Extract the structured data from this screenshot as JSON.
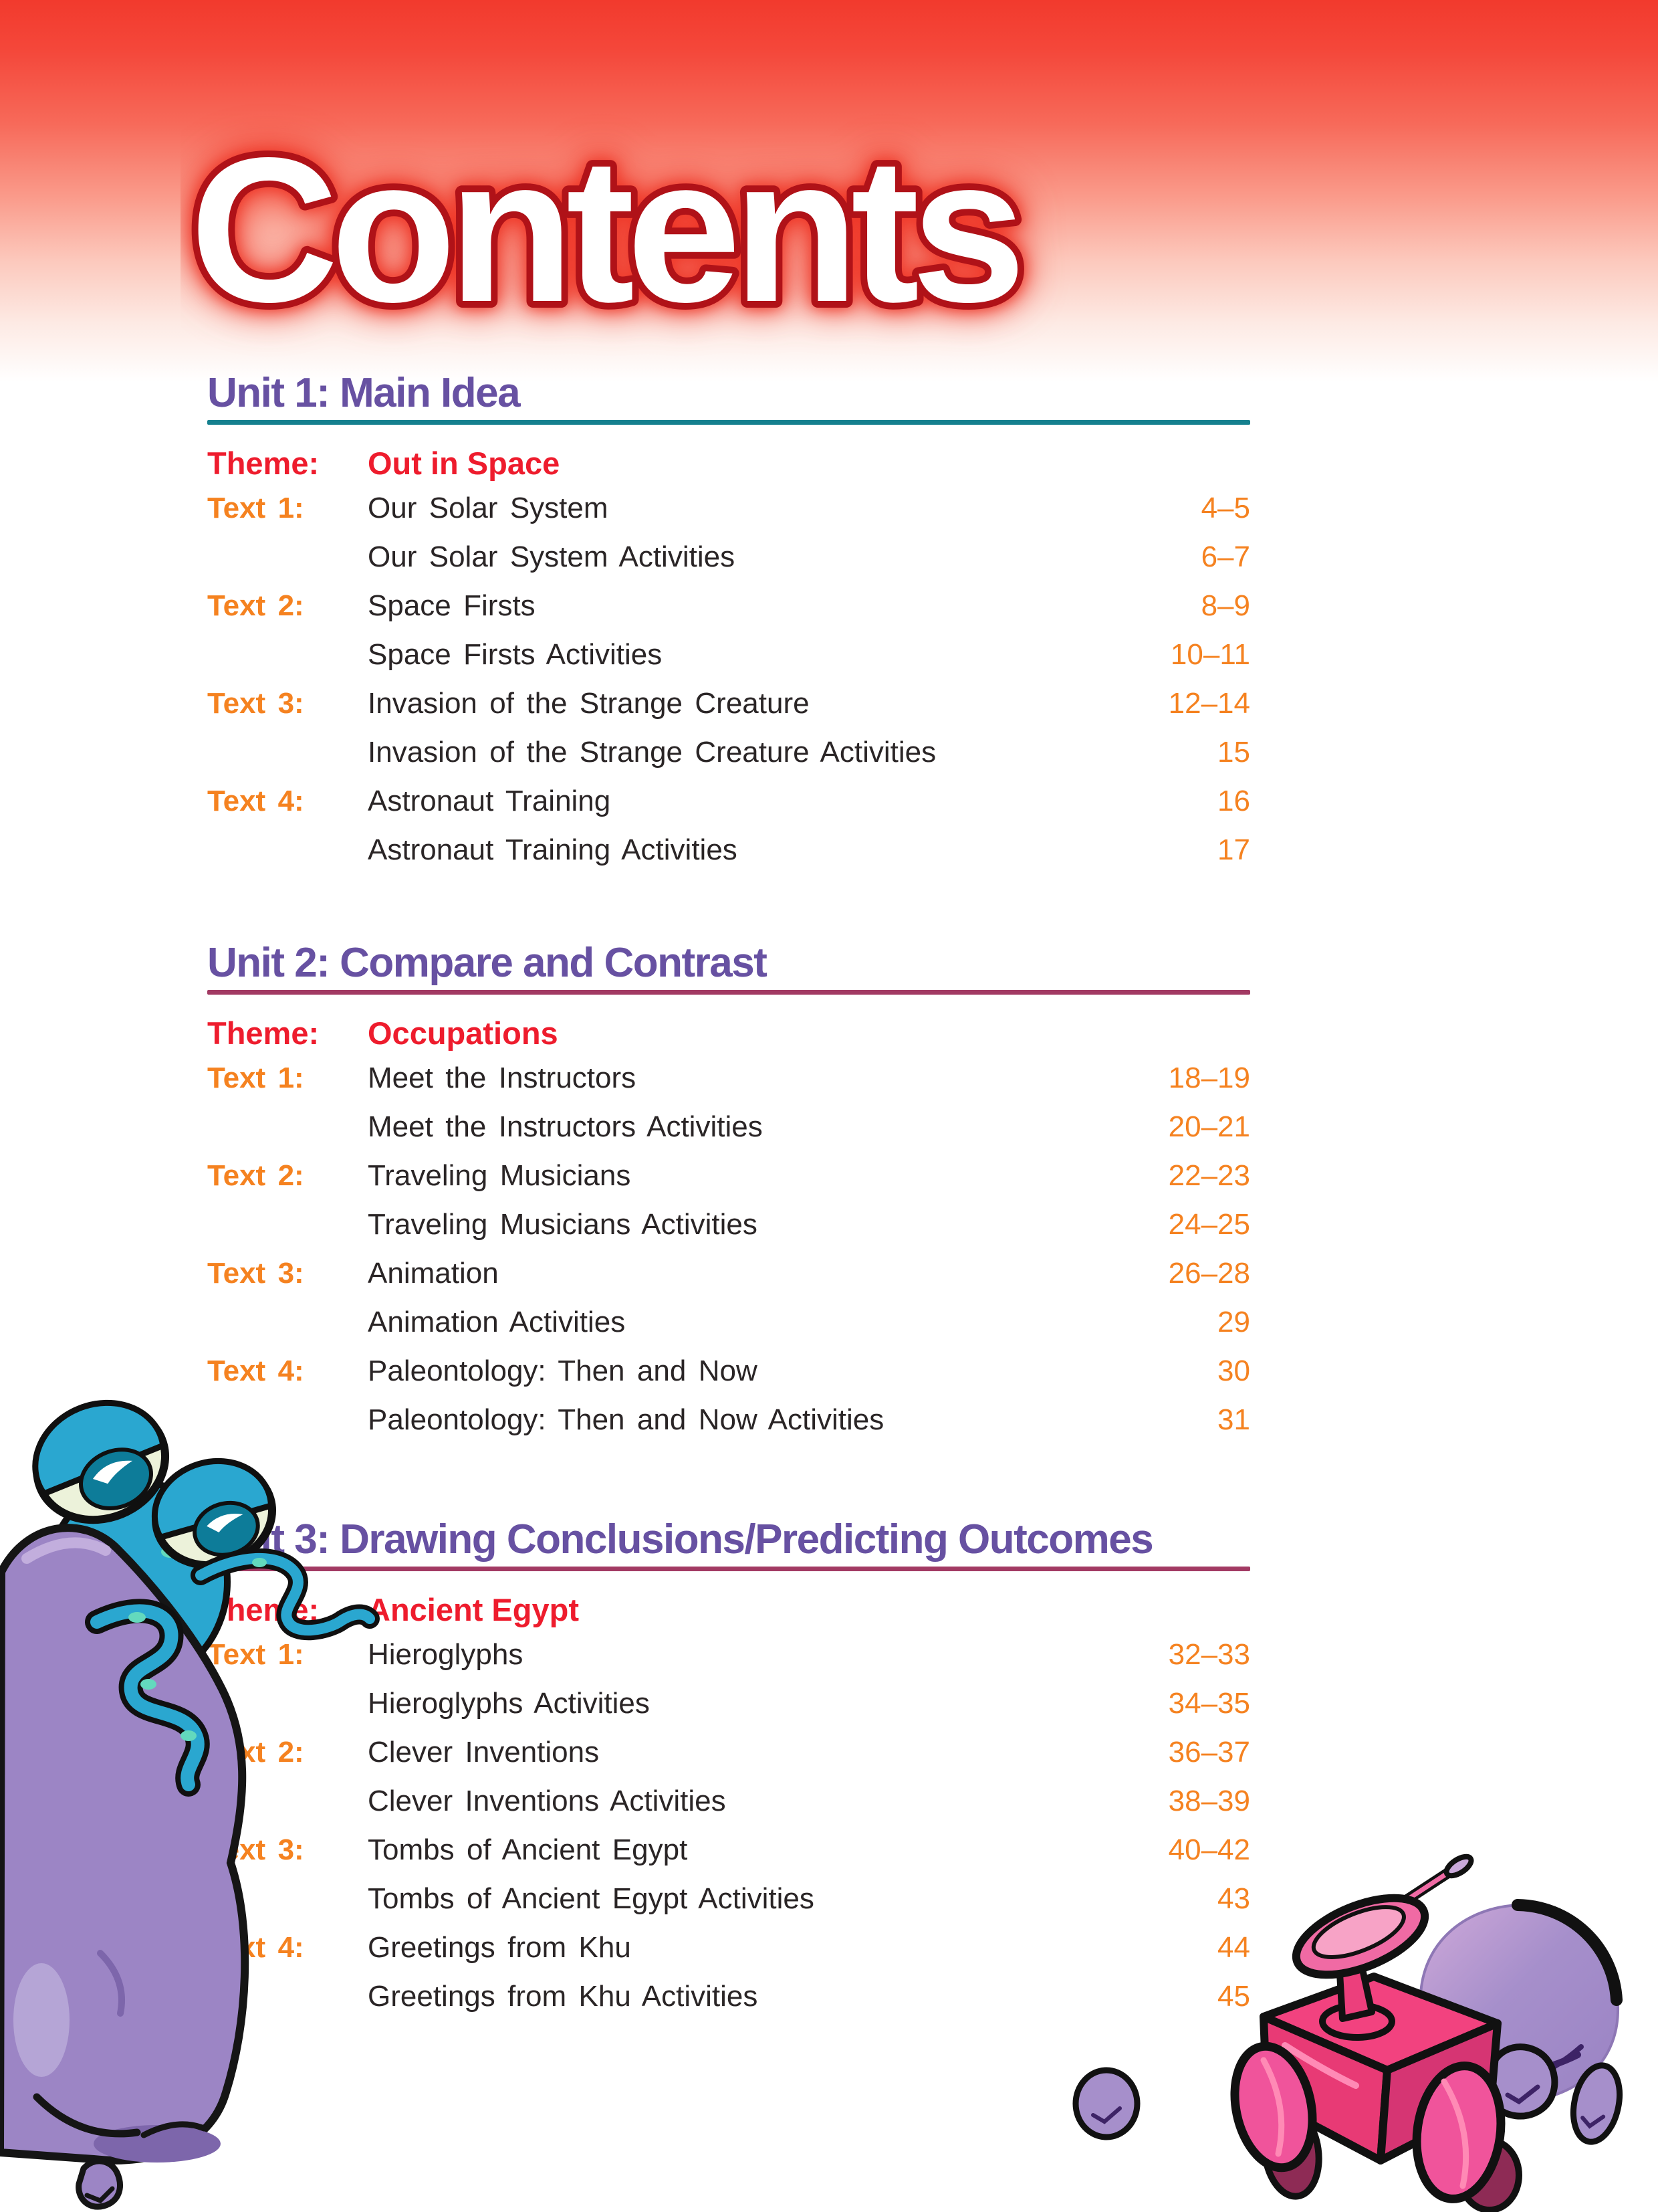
{
  "header": {
    "title": "Contents"
  },
  "colors": {
    "banner_red": "#f23a2d",
    "title_outline_red": "#b01218",
    "unit_heading_purple": "#6751a2",
    "theme_red": "#ee1c2d",
    "label_orange": "#f58220",
    "body_text": "#2a2526",
    "rule_teal": "#15808e",
    "rule_maroon": "#a23a63"
  },
  "units": [
    {
      "heading": "Unit 1: Main Idea",
      "rule_color": "#15808e",
      "theme_label": "Theme:",
      "theme": "Out in Space",
      "rows": [
        {
          "label": "Text 1:",
          "title": "Our Solar System",
          "pages": "4–5"
        },
        {
          "label": "",
          "title": "Our Solar System Activities",
          "pages": "6–7"
        },
        {
          "label": "Text 2:",
          "title": "Space Firsts",
          "pages": "8–9"
        },
        {
          "label": "",
          "title": "Space Firsts Activities",
          "pages": "10–11"
        },
        {
          "label": "Text 3:",
          "title": "Invasion of the Strange Creature",
          "pages": "12–14"
        },
        {
          "label": "",
          "title": "Invasion of the Strange Creature Activities",
          "pages": "15"
        },
        {
          "label": "Text 4:",
          "title": "Astronaut Training",
          "pages": "16"
        },
        {
          "label": "",
          "title": "Astronaut Training Activities",
          "pages": "17"
        }
      ]
    },
    {
      "heading": "Unit 2: Compare and Contrast",
      "rule_color": "#a23a63",
      "theme_label": "Theme:",
      "theme": "Occupations",
      "rows": [
        {
          "label": "Text 1:",
          "title": "Meet the Instructors",
          "pages": "18–19"
        },
        {
          "label": "",
          "title": "Meet the Instructors Activities",
          "pages": "20–21"
        },
        {
          "label": "Text 2:",
          "title": "Traveling Musicians",
          "pages": "22–23"
        },
        {
          "label": "",
          "title": "Traveling Musicians Activities",
          "pages": "24–25"
        },
        {
          "label": "Text 3:",
          "title": "Animation",
          "pages": "26–28"
        },
        {
          "label": "",
          "title": "Animation Activities",
          "pages": "29"
        },
        {
          "label": "Text 4:",
          "title": "Paleontology: Then and Now",
          "pages": "30"
        },
        {
          "label": "",
          "title": "Paleontology: Then and Now Activities",
          "pages": "31"
        }
      ]
    },
    {
      "heading": "Unit 3: Drawing Conclusions/Predicting Outcomes",
      "rule_color": "#a23a63",
      "theme_label": "Theme:",
      "theme": "Ancient Egypt",
      "rows": [
        {
          "label": "Text 1:",
          "title": "Hieroglyphs",
          "pages": "32–33"
        },
        {
          "label": "",
          "title": "Hieroglyphs Activities",
          "pages": "34–35"
        },
        {
          "label": "Text 2:",
          "title": "Clever Inventions",
          "pages": "36–37"
        },
        {
          "label": "",
          "title": "Clever Inventions Activities",
          "pages": "38–39"
        },
        {
          "label": "Text 3:",
          "title": "Tombs of Ancient Egypt",
          "pages": "40–42"
        },
        {
          "label": "",
          "title": "Tombs of Ancient Egypt Activities",
          "pages": "43"
        },
        {
          "label": "Text 4:",
          "title": "Greetings from Khu",
          "pages": "44"
        },
        {
          "label": "",
          "title": "Greetings from Khu Activities",
          "pages": "45"
        }
      ]
    }
  ],
  "illustrations": {
    "left": "blue-alien-peeking-over-purple-rock",
    "right": "pink-space-rover-with-satellite-dish-and-purple-rocks"
  }
}
